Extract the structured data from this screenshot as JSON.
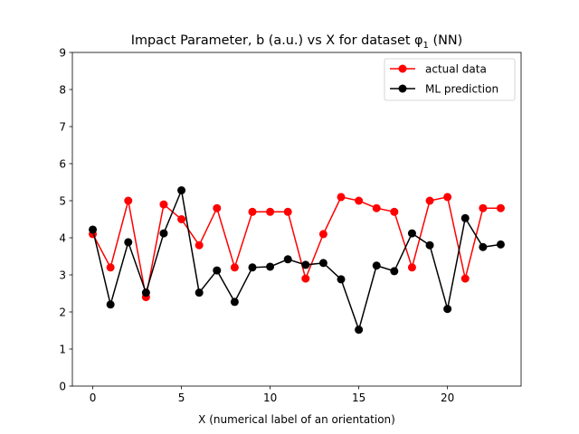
{
  "chart_data": {
    "type": "line",
    "title": "Impact Parameter, b (a.u.) vs X for dataset φ",
    "title_subscript": "1",
    "title_suffix": " (NN)",
    "xlabel": "X (numerical label of an orientation)",
    "ylabel": "",
    "xlim": [
      -1.15,
      24.15
    ],
    "ylim": [
      0,
      9
    ],
    "xticks": [
      0,
      5,
      10,
      15,
      20
    ],
    "yticks": [
      0,
      1,
      2,
      3,
      4,
      5,
      6,
      7,
      8,
      9
    ],
    "grid": false,
    "legend_position": "top-right",
    "x": [
      0,
      1,
      2,
      3,
      4,
      5,
      6,
      7,
      8,
      9,
      10,
      11,
      12,
      13,
      14,
      15,
      16,
      17,
      18,
      19,
      20,
      21,
      22,
      23
    ],
    "series": [
      {
        "name": "actual data",
        "color": "#ff0000",
        "values": [
          4.1,
          3.2,
          5.0,
          2.4,
          4.9,
          4.5,
          3.8,
          4.8,
          3.2,
          4.7,
          4.7,
          4.7,
          2.9,
          4.1,
          5.1,
          5.0,
          4.8,
          4.7,
          3.2,
          5.0,
          5.1,
          2.9,
          4.8,
          4.8
        ]
      },
      {
        "name": "ML prediction",
        "color": "#000000",
        "values": [
          4.22,
          2.2,
          3.88,
          2.52,
          4.12,
          5.28,
          2.52,
          3.12,
          2.27,
          3.2,
          3.22,
          3.42,
          3.27,
          3.32,
          2.88,
          1.52,
          3.25,
          3.1,
          4.12,
          3.8,
          2.08,
          4.53,
          3.75,
          3.82
        ]
      }
    ]
  }
}
